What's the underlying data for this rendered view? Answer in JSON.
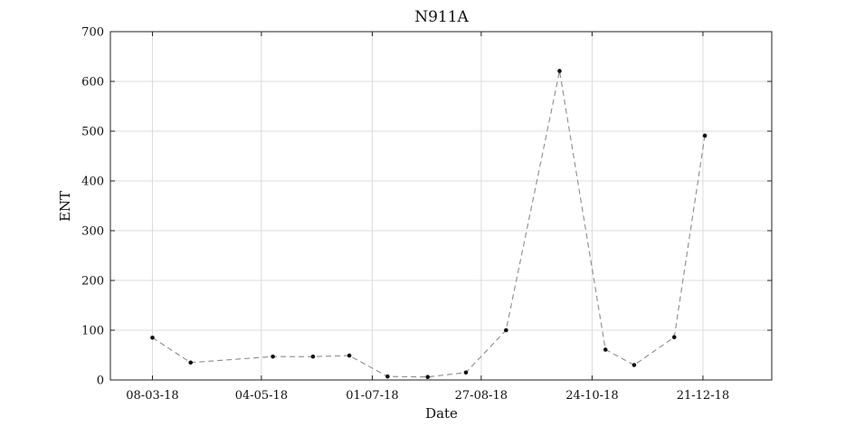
{
  "chart_data": {
    "type": "line",
    "title": "N911A",
    "xlabel": "Date",
    "ylabel": "ENT",
    "x_axis_kind": "date",
    "xlim": [
      "2018-02-14",
      "2019-01-26"
    ],
    "ylim": [
      0,
      700
    ],
    "y_ticks": [
      0,
      100,
      200,
      300,
      400,
      500,
      600,
      700
    ],
    "x_ticks": [
      {
        "date": "2018-03-08",
        "label": "08-03-18"
      },
      {
        "date": "2018-05-04",
        "label": "04-05-18"
      },
      {
        "date": "2018-07-01",
        "label": "01-07-18"
      },
      {
        "date": "2018-08-27",
        "label": "27-08-18"
      },
      {
        "date": "2018-10-24",
        "label": "24-10-18"
      },
      {
        "date": "2018-12-21",
        "label": "21-12-18"
      }
    ],
    "grid": true,
    "line_style": "dashed",
    "line_color": "#8c8c8c",
    "marker_color": "#111111",
    "series": [
      {
        "x": [
          "2018-03-08",
          "2018-03-28",
          "2018-05-10",
          "2018-05-31",
          "2018-06-19",
          "2018-07-09",
          "2018-07-30",
          "2018-08-19",
          "2018-09-09",
          "2018-10-07",
          "2018-10-31",
          "2018-11-15",
          "2018-12-06",
          "2018-12-22"
        ],
        "y": [
          85,
          35,
          47,
          47,
          49,
          7,
          6,
          15,
          100,
          621,
          61,
          30,
          86,
          491
        ]
      }
    ]
  }
}
